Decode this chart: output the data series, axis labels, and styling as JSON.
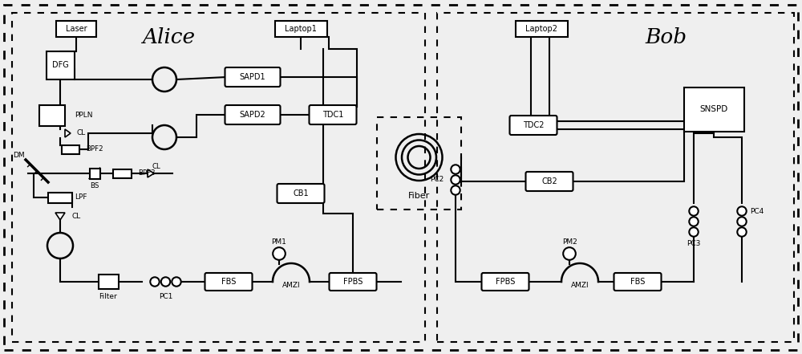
{
  "figw": 10.0,
  "figh": 4.41,
  "dpi": 100,
  "bg": "#efefef",
  "alice_label": "Alice",
  "bob_label": "Bob",
  "fiber_label": "Fiber"
}
